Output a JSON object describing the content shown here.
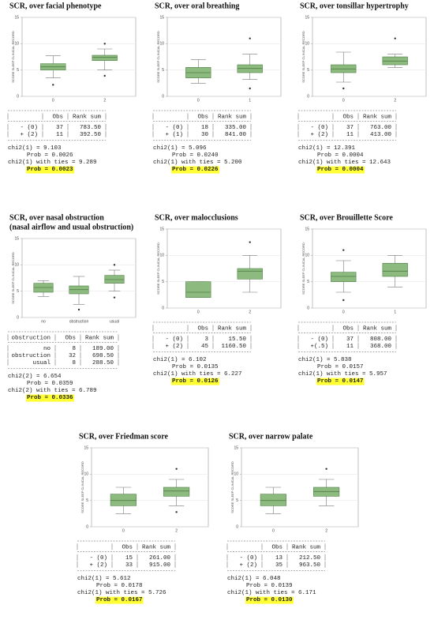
{
  "y_axis_label": "SCORE SLEEP CLINICAL RECORD",
  "plot_scale": {
    "ylim": [
      0,
      15
    ],
    "yticks": [
      0,
      5,
      10,
      15
    ],
    "grid": true,
    "box_color": "#8dbb7f",
    "line_color": "#4f7f46"
  },
  "panels": [
    {
      "title": [
        "SCR, over facial phenotype"
      ],
      "plot": {
        "groups": [
          {
            "label": "0",
            "whisker_low": 3.5,
            "q1": 5.0,
            "median": 5.6,
            "q3": 6.2,
            "whisker_high": 7.7,
            "outliers": [
              2.2
            ]
          },
          {
            "label": "2",
            "whisker_low": 5.0,
            "q1": 6.8,
            "median": 7.4,
            "q3": 7.8,
            "whisker_high": 9.0,
            "outliers": [
              10.0,
              3.9
            ]
          }
        ]
      },
      "table": {
        "header": [
          "Obs",
          "Rank sum"
        ],
        "rows": [
          [
            "- (0)",
            "37",
            "783.50"
          ],
          [
            "+ (2)",
            "11",
            "392.50"
          ]
        ]
      },
      "stats": [
        "chi2(1) =   9.103",
        "Prob = 0.0026",
        "chi2(1) with ties =   9.289",
        "Prob = 0.0023"
      ]
    },
    {
      "title": [
        "SCR, over oral breathing"
      ],
      "plot": {
        "groups": [
          {
            "label": "0",
            "whisker_low": 2.5,
            "q1": 3.5,
            "median": 4.5,
            "q3": 5.5,
            "whisker_high": 7.0,
            "outliers": []
          },
          {
            "label": "1",
            "whisker_low": 3.2,
            "q1": 4.5,
            "median": 5.3,
            "q3": 6.0,
            "whisker_high": 8.0,
            "outliers": [
              11.0,
              1.5
            ]
          }
        ]
      },
      "table": {
        "header": [
          "Obs",
          "Rank sum"
        ],
        "rows": [
          [
            "- (0)",
            "18",
            "335.00"
          ],
          [
            "+ (1)",
            "30",
            "841.00"
          ]
        ]
      },
      "stats": [
        "chi2(1) =   5.096",
        "Prob = 0.0240",
        "chi2(1) with ties =   5.200",
        "Prob = 0.0226"
      ]
    },
    {
      "title": [
        "SCR, over tonsillar hypertrophy"
      ],
      "plot": {
        "groups": [
          {
            "label": "0",
            "whisker_low": 2.7,
            "q1": 4.5,
            "median": 5.2,
            "q3": 6.0,
            "whisker_high": 8.4,
            "outliers": [
              1.5
            ]
          },
          {
            "label": "2",
            "whisker_low": 5.5,
            "q1": 6.0,
            "median": 6.7,
            "q3": 7.5,
            "whisker_high": 8.0,
            "outliers": [
              11.0
            ]
          }
        ]
      },
      "table": {
        "header": [
          "Obs",
          "Rank sum"
        ],
        "rows": [
          [
            "- (0)",
            "37",
            "763.00"
          ],
          [
            "+ (2)",
            "11",
            "413.00"
          ]
        ]
      },
      "stats": [
        "chi2(1) =  12.391",
        "Prob = 0.0004",
        "chi2(1) with ties =  12.643",
        "Prob = 0.0004"
      ]
    },
    {
      "title": [
        "SCR, over nasal obstruction",
        "(nasal airflow and usual obstruction)"
      ],
      "plot": {
        "groups": [
          {
            "label": "no",
            "whisker_low": 4.0,
            "q1": 4.8,
            "median": 5.7,
            "q3": 6.5,
            "whisker_high": 7.0,
            "outliers": []
          },
          {
            "label": "obstruction",
            "whisker_low": 2.5,
            "q1": 4.5,
            "median": 5.3,
            "q3": 6.0,
            "whisker_high": 7.8,
            "outliers": [
              1.5
            ]
          },
          {
            "label": "usual",
            "whisker_low": 5.0,
            "q1": 6.5,
            "median": 7.2,
            "q3": 8.0,
            "whisker_high": 9.0,
            "outliers": [
              10.0,
              3.8
            ]
          }
        ]
      },
      "table": {
        "group_header": "obstruction",
        "header": [
          "Obs",
          "Rank sum"
        ],
        "rows": [
          [
            "no",
            "8",
            "189.00"
          ],
          [
            "obstruction",
            "32",
            "698.50"
          ],
          [
            "usual",
            "8",
            "288.50"
          ]
        ]
      },
      "stats": [
        "chi2(2) =   6.654",
        "Prob = 0.0359",
        "chi2(2) with ties =   6.789",
        "Prob = 0.0336"
      ]
    },
    {
      "title": [
        "SCR, over malocclusions"
      ],
      "plot": {
        "groups": [
          {
            "label": "0",
            "whisker_low": 2.0,
            "q1": 2.0,
            "median": 3.0,
            "q3": 5.0,
            "whisker_high": 5.0,
            "outliers": []
          },
          {
            "label": "2",
            "whisker_low": 3.0,
            "q1": 5.5,
            "median": 7.0,
            "q3": 7.5,
            "whisker_high": 10.0,
            "outliers": [
              12.5
            ]
          }
        ]
      },
      "table": {
        "header": [
          "Obs",
          "Rank sum"
        ],
        "rows": [
          [
            "- (0)",
            "3",
            "15.50"
          ],
          [
            "+ (2)",
            "45",
            "1160.50"
          ]
        ]
      },
      "stats": [
        "chi2(1) =   6.102",
        "Prob = 0.0135",
        "chi2(1) with ties =   6.227",
        "Prob = 0.0126"
      ]
    },
    {
      "title": [
        "SCR, over Brouillette Score"
      ],
      "plot": {
        "groups": [
          {
            "label": "0",
            "whisker_low": 3.0,
            "q1": 5.0,
            "median": 6.0,
            "q3": 6.8,
            "whisker_high": 9.0,
            "outliers": [
              11.0,
              1.5
            ]
          },
          {
            "label": "1",
            "whisker_low": 4.0,
            "q1": 6.0,
            "median": 7.0,
            "q3": 8.5,
            "whisker_high": 10.0,
            "outliers": []
          }
        ]
      },
      "table": {
        "header": [
          "Obs",
          "Rank sum"
        ],
        "rows": [
          [
            "- (0)",
            "37",
            "808.00"
          ],
          [
            "+(.5)",
            "11",
            "368.00"
          ]
        ]
      },
      "stats": [
        "chi2(1) =   5.838",
        "Prob = 0.0157",
        "chi2(1) with ties =   5.957",
        "Prob = 0.0147"
      ]
    },
    {
      "title": [
        "SCR, over Friedman score"
      ],
      "plot": {
        "groups": [
          {
            "label": "0",
            "whisker_low": 2.5,
            "q1": 4.0,
            "median": 5.0,
            "q3": 6.2,
            "whisker_high": 7.5,
            "outliers": []
          },
          {
            "label": "2",
            "whisker_low": 4.0,
            "q1": 5.8,
            "median": 6.8,
            "q3": 7.5,
            "whisker_high": 9.0,
            "outliers": [
              11.0,
              2.8
            ]
          }
        ]
      },
      "table": {
        "header": [
          "Obs",
          "Rank sum"
        ],
        "rows": [
          [
            "- (0)",
            "15",
            "261.00"
          ],
          [
            "+ (2)",
            "33",
            "915.00"
          ]
        ]
      },
      "stats": [
        "chi2(1) =   5.612",
        "Prob = 0.0178",
        "chi2(1) with ties =   5.726",
        "Prob = 0.0167"
      ]
    },
    {
      "title": [
        "SCR, over narrow palate"
      ],
      "plot": {
        "groups": [
          {
            "label": "0",
            "whisker_low": 2.5,
            "q1": 4.0,
            "median": 5.0,
            "q3": 6.2,
            "whisker_high": 7.5,
            "outliers": []
          },
          {
            "label": "2",
            "whisker_low": 4.0,
            "q1": 5.8,
            "median": 6.7,
            "q3": 7.5,
            "whisker_high": 9.0,
            "outliers": [
              11.0
            ]
          }
        ]
      },
      "table": {
        "header": [
          "Obs",
          "Rank sum"
        ],
        "rows": [
          [
            "- (0)",
            "13",
            "212.50"
          ],
          [
            "+ (2)",
            "35",
            "963.50"
          ]
        ]
      },
      "stats": [
        "chi2(1) =   6.048",
        "Prob = 0.0139",
        "chi2(1) with ties =   6.171",
        "Prob = 0.0130"
      ]
    }
  ]
}
